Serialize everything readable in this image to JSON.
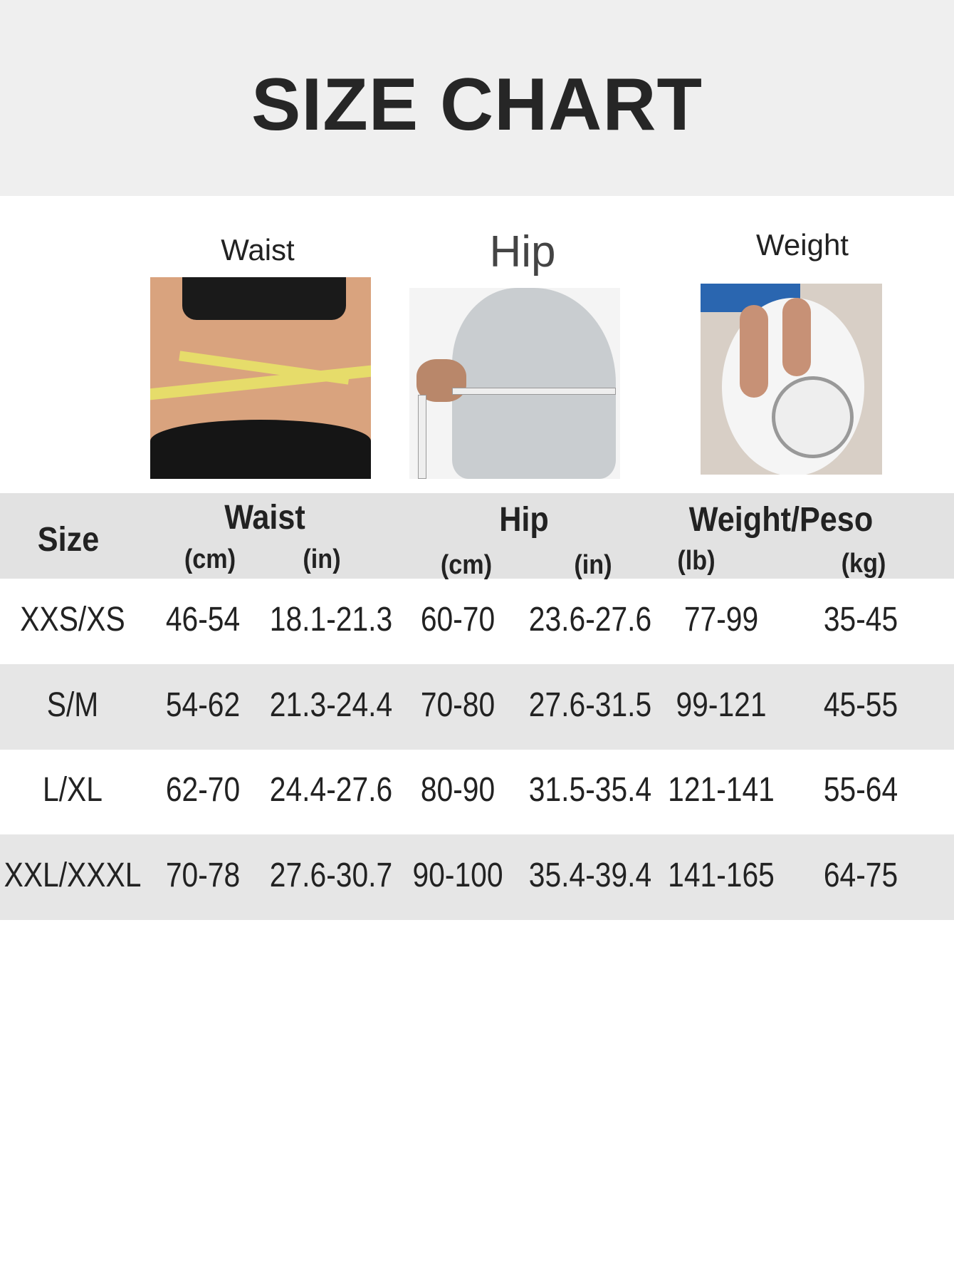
{
  "title": "SIZE CHART",
  "photos": {
    "waist": "Waist",
    "hip": "Hip",
    "weight": "Weight"
  },
  "header": {
    "size": "Size",
    "waist": "Waist",
    "hip": "Hip",
    "weight": "Weight/Peso",
    "units": [
      "(cm)",
      "(in)",
      "(cm)",
      "(in)",
      "(lb)",
      "(kg)"
    ]
  },
  "rows": [
    {
      "size": "XXS/XS",
      "waist_cm": "46-54",
      "waist_in": "18.1-21.3",
      "hip_cm": "60-70",
      "hip_in": "23.6-27.6",
      "lb": "77-99",
      "kg": "35-45"
    },
    {
      "size": "S/M",
      "waist_cm": "54-62",
      "waist_in": "21.3-24.4",
      "hip_cm": "70-80",
      "hip_in": "27.6-31.5",
      "lb": "99-121",
      "kg": "45-55"
    },
    {
      "size": "L/XL",
      "waist_cm": "62-70",
      "waist_in": "24.4-27.6",
      "hip_cm": "80-90",
      "hip_in": "31.5-35.4",
      "lb": "121-141",
      "kg": "55-64"
    },
    {
      "size": "XXL/XXXL",
      "waist_cm": "70-78",
      "waist_in": "27.6-30.7",
      "hip_cm": "90-100",
      "hip_in": "35.4-39.4",
      "lb": "141-165",
      "kg": "64-75"
    }
  ],
  "colors": {
    "title_band": "#efefef",
    "header_band": "#e2e2e2",
    "stripe": "#e6e6e6",
    "text": "#222222"
  }
}
